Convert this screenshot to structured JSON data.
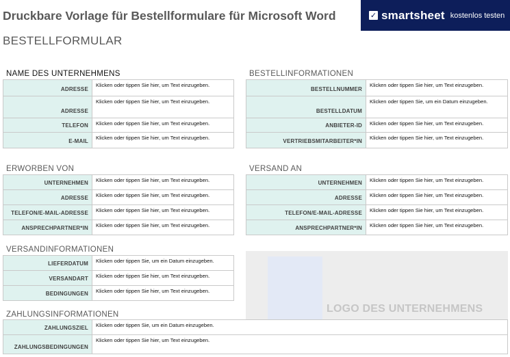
{
  "doc_title": "Druckbare Vorlage für Bestellformulare für Microsoft Word",
  "banner": {
    "brand": "smartsheet",
    "cta": "kostenlos testen",
    "logo_glyph": "✓",
    "bg_color": "#0d1e5a"
  },
  "form_title": "BESTELLFORMULAR",
  "accent_color": "#dff2ef",
  "company": {
    "heading": "NAME DES UNTERNEHMENS",
    "rows": [
      {
        "label": "ADRESSE",
        "value": "Klicken oder tippen Sie hier, um Text einzugeben."
      },
      {
        "label": "ADRESSE",
        "value": "Klicken oder tippen Sie hier, um Text einzugeben."
      },
      {
        "label": "TELEFON",
        "value": "Klicken oder tippen Sie hier, um Text einzugeben."
      },
      {
        "label": "E-MAIL",
        "value": "Klicken oder tippen Sie hier, um Text einzugeben."
      }
    ]
  },
  "order_info": {
    "heading": "BESTELLINFORMATIONEN",
    "rows": [
      {
        "label": "BESTELLNUMMER",
        "value": "Klicken oder tippen Sie hier, um Text einzugeben."
      },
      {
        "label": "BESTELLDATUM",
        "value": "Klicken oder tippen Sie, um ein Datum einzugeben."
      },
      {
        "label": "ANBIETER-ID",
        "value": "Klicken oder tippen Sie hier, um Text einzugeben."
      },
      {
        "label": "VERTRIEBSMITARBEITER*IN",
        "value": "Klicken oder tippen Sie hier, um Text einzugeben."
      }
    ]
  },
  "purchased_from": {
    "heading": "ERWORBEN VON",
    "rows": [
      {
        "label": "UNTERNEHMEN",
        "value": "Klicken oder tippen Sie hier, um Text einzugeben."
      },
      {
        "label": "ADRESSE",
        "value": "Klicken oder tippen Sie hier, um Text einzugeben."
      },
      {
        "label": "TELEFON/E-MAIL-ADRESSE",
        "value": "Klicken oder tippen Sie hier, um Text einzugeben."
      },
      {
        "label": "ANSPRECHPARTNER*IN",
        "value": "Klicken oder tippen Sie hier, um Text einzugeben."
      }
    ]
  },
  "ship_to": {
    "heading": "VERSAND AN",
    "rows": [
      {
        "label": "UNTERNEHMEN",
        "value": "Klicken oder tippen Sie hier, um Text einzugeben."
      },
      {
        "label": "ADRESSE",
        "value": "Klicken oder tippen Sie hier, um Text einzugeben."
      },
      {
        "label": "TELEFON/E-MAIL-ADRESSE",
        "value": "Klicken oder tippen Sie hier, um Text einzugeben."
      },
      {
        "label": "ANSPRECHPARTNER*IN",
        "value": "Klicken oder tippen Sie hier, um Text einzugeben."
      }
    ]
  },
  "shipping_info": {
    "heading": "VERSANDINFORMATIONEN",
    "rows": [
      {
        "label": "LIEFERDATUM",
        "value": "Klicken oder tippen Sie, um ein Datum einzugeben."
      },
      {
        "label": "VERSANDART",
        "value": "Klicken oder tippen Sie hier, um Text einzugeben."
      },
      {
        "label": "BEDINGUNGEN",
        "value": "Klicken oder tippen Sie hier, um Text einzugeben."
      }
    ]
  },
  "logo_area": {
    "text": "LOGO DES UNTERNEHMENS"
  },
  "payment_info": {
    "heading": "ZAHLUNGSINFORMATIONEN",
    "rows": [
      {
        "label": "ZAHLUNGSZIEL",
        "value": "Klicken oder tippen Sie, um ein Datum einzugeben."
      },
      {
        "label": "ZAHLUNGSBEDINGUNGEN",
        "value": "Klicken oder tippen Sie hier, um Text einzugeben."
      }
    ]
  }
}
